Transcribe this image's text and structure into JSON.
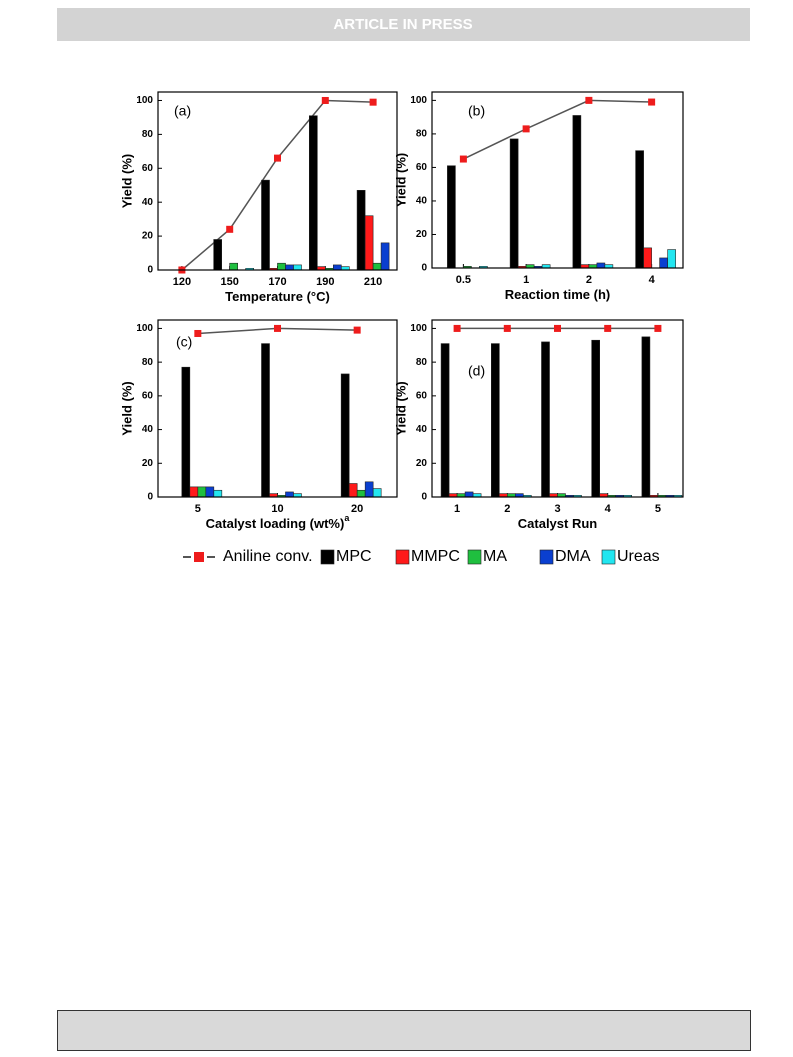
{
  "header": {
    "title": "ARTICLE IN PRESS"
  },
  "legend": [
    {
      "name": "Aniline conv.",
      "color": "#ee1c1c",
      "type": "line"
    },
    {
      "name": "MPC",
      "color": "#000000",
      "type": "bar"
    },
    {
      "name": "MMPC",
      "color": "#ff1a1a",
      "type": "bar"
    },
    {
      "name": "MA",
      "color": "#1fbf3f",
      "type": "bar"
    },
    {
      "name": "DMA",
      "color": "#0a3fd0",
      "type": "bar"
    },
    {
      "name": "Ureas",
      "color": "#22e6f0",
      "type": "bar"
    }
  ],
  "chart_data": [
    {
      "type": "bar",
      "panel_label": "(a)",
      "xlabel": "Temperature (°C)",
      "ylabel": "Yield (%)",
      "categories": [
        "120",
        "150",
        "170",
        "190",
        "210"
      ],
      "ylim": [
        0,
        105
      ],
      "yticks": [
        0,
        20,
        40,
        60,
        80,
        100
      ],
      "series": [
        {
          "values": [
            0,
            24,
            66,
            100,
            99
          ]
        },
        {
          "values": [
            0,
            18,
            53,
            91,
            47
          ]
        },
        {
          "values": [
            0,
            0,
            1,
            2,
            32
          ]
        },
        {
          "values": [
            0,
            4,
            4,
            1,
            4
          ]
        },
        {
          "values": [
            0,
            0,
            3,
            3,
            16
          ]
        },
        {
          "values": [
            0,
            1,
            3,
            2,
            0
          ]
        }
      ]
    },
    {
      "type": "bar",
      "panel_label": "(b)",
      "xlabel": "Reaction time (h)",
      "ylabel": "Yield (%)",
      "categories": [
        "0.5",
        "1",
        "2",
        "4"
      ],
      "ylim": [
        0,
        105
      ],
      "yticks": [
        0,
        20,
        40,
        60,
        80,
        100
      ],
      "series": [
        {
          "values": [
            65,
            83,
            100,
            99
          ]
        },
        {
          "values": [
            61,
            77,
            91,
            70
          ]
        },
        {
          "values": [
            0,
            1,
            2,
            12
          ]
        },
        {
          "values": [
            1,
            2,
            2,
            0
          ]
        },
        {
          "values": [
            0,
            1,
            3,
            6
          ]
        },
        {
          "values": [
            1,
            2,
            2,
            11
          ]
        }
      ]
    },
    {
      "type": "bar",
      "panel_label": "(c)",
      "xlabel": "Catalyst loading (wt%)",
      "xlabel_superscript": "a",
      "ylabel": "Yield (%)",
      "categories": [
        "5",
        "10",
        "20"
      ],
      "ylim": [
        0,
        105
      ],
      "yticks": [
        0,
        20,
        40,
        60,
        80,
        100
      ],
      "series": [
        {
          "values": [
            97,
            100,
            99
          ]
        },
        {
          "values": [
            77,
            91,
            73
          ]
        },
        {
          "values": [
            6,
            2,
            8
          ]
        },
        {
          "values": [
            6,
            1,
            4
          ]
        },
        {
          "values": [
            6,
            3,
            9
          ]
        },
        {
          "values": [
            4,
            2,
            5
          ]
        }
      ]
    },
    {
      "type": "bar",
      "panel_label": "(d)",
      "xlabel": "Catalyst Run",
      "ylabel": "Yield (%)",
      "categories": [
        "1",
        "2",
        "3",
        "4",
        "5"
      ],
      "ylim": [
        0,
        105
      ],
      "yticks": [
        0,
        20,
        40,
        60,
        80,
        100
      ],
      "series": [
        {
          "values": [
            100,
            100,
            100,
            100,
            100
          ]
        },
        {
          "values": [
            91,
            91,
            92,
            93,
            95
          ]
        },
        {
          "values": [
            2,
            2,
            2,
            2,
            1
          ]
        },
        {
          "values": [
            2,
            2,
            2,
            1,
            1
          ]
        },
        {
          "values": [
            3,
            2,
            1,
            1,
            1
          ]
        },
        {
          "values": [
            2,
            1,
            1,
            1,
            1
          ]
        }
      ]
    }
  ]
}
